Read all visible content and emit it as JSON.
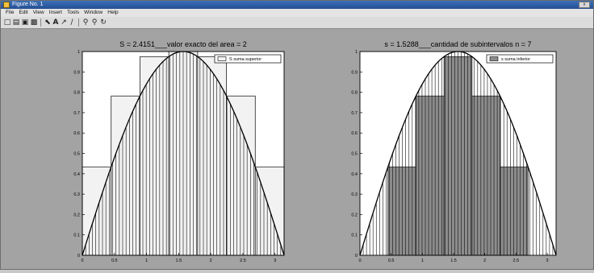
{
  "window": {
    "title": "Figure No. 1",
    "close_label": "x"
  },
  "menu": {
    "items": [
      "File",
      "Edit",
      "View",
      "Insert",
      "Tools",
      "Window",
      "Help"
    ]
  },
  "toolbar": {
    "icons": [
      "new-file-icon",
      "open-folder-icon",
      "save-icon",
      "print-icon",
      "select-arrow-icon",
      "text-tool-icon",
      "arrow-tool-icon",
      "line-tool-icon",
      "zoom-in-icon",
      "zoom-out-icon",
      "rotate-icon"
    ]
  },
  "chart_data": [
    {
      "type": "bar",
      "title": "S =  2.4151___valor exacto del area =  2",
      "legend": "S suma superior",
      "legend_position": "top-right",
      "xlim": [
        0,
        3.1416
      ],
      "ylim": [
        0,
        1
      ],
      "xticks": [
        "0",
        "0.5",
        "1",
        "1.5",
        "2",
        "2.5",
        "3"
      ],
      "yticks": [
        "0",
        "0.1",
        "0.2",
        "0.3",
        "0.4",
        "0.5",
        "0.6",
        "0.7",
        "0.8",
        "0.9",
        "1"
      ],
      "n": 7,
      "heights": [
        0.4339,
        0.7818,
        0.9749,
        1.0,
        0.9749,
        0.7818,
        0.4339
      ],
      "fill": "#f2f2f2",
      "curve": "sin(x)"
    },
    {
      "type": "bar",
      "title": "s =  1.5288___cantidad de subintervalos n =  7",
      "legend": "s suma inferior",
      "legend_position": "top-right",
      "xlim": [
        0,
        3.1416
      ],
      "ylim": [
        0,
        1
      ],
      "xticks": [
        "0",
        "0.5",
        "1",
        "1.5",
        "2",
        "2.5",
        "3"
      ],
      "yticks": [
        "0",
        "0.1",
        "0.2",
        "0.3",
        "0.4",
        "0.5",
        "0.6",
        "0.7",
        "0.8",
        "0.9",
        "1"
      ],
      "n": 7,
      "heights": [
        0,
        0.4339,
        0.7818,
        0.9749,
        0.7818,
        0.4339,
        0
      ],
      "fill": "#8c8c8c",
      "curve": "sin(x)"
    }
  ]
}
